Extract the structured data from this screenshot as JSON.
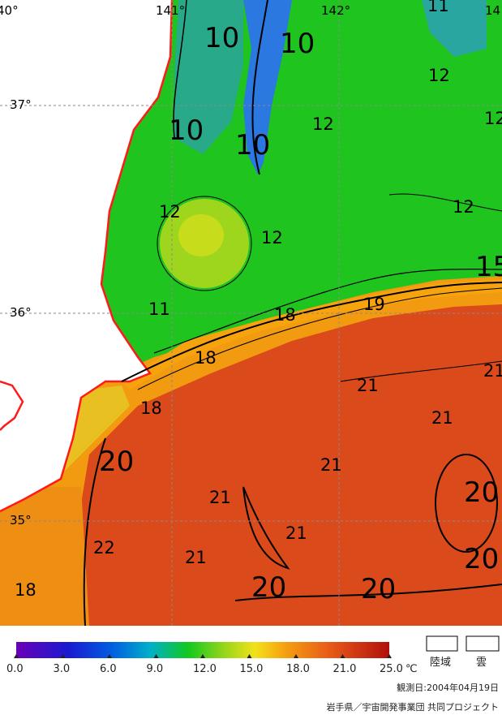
{
  "map": {
    "longitude_labels": [
      "40°",
      "141°",
      "142°",
      "14"
    ],
    "latitude_labels": [
      "37°",
      "36°",
      "35°"
    ],
    "contour_labels": [
      {
        "text": "10",
        "big": true
      },
      {
        "text": "10",
        "big": true
      },
      {
        "text": "10",
        "big": true
      },
      {
        "text": "10",
        "big": true
      },
      {
        "text": "11",
        "big": false
      },
      {
        "text": "12",
        "big": false
      },
      {
        "text": "12",
        "big": false
      },
      {
        "text": "12",
        "big": false
      },
      {
        "text": "12",
        "big": false
      },
      {
        "text": "12",
        "big": false
      },
      {
        "text": "12",
        "big": false
      },
      {
        "text": "15",
        "big": true
      },
      {
        "text": "11",
        "big": false
      },
      {
        "text": "18",
        "big": false
      },
      {
        "text": "19",
        "big": false
      },
      {
        "text": "18",
        "big": false
      },
      {
        "text": "18",
        "big": false
      },
      {
        "text": "21",
        "big": false
      },
      {
        "text": "21",
        "big": false
      },
      {
        "text": "21",
        "big": false
      },
      {
        "text": "21",
        "big": false
      },
      {
        "text": "20",
        "big": true
      },
      {
        "text": "21",
        "big": false
      },
      {
        "text": "20",
        "big": true
      },
      {
        "text": "21",
        "big": false
      },
      {
        "text": "20",
        "big": true
      },
      {
        "text": "22",
        "big": false
      },
      {
        "text": "21",
        "big": false
      },
      {
        "text": "20",
        "big": true
      },
      {
        "text": "20",
        "big": true
      },
      {
        "text": "18",
        "big": false
      }
    ]
  },
  "legend": {
    "ticks": [
      "0.0",
      "3.0",
      "6.0",
      "9.0",
      "12.0",
      "15.0",
      "18.0",
      "21.0",
      "25.0"
    ],
    "unit": "℃",
    "land_label": "陸域",
    "cloud_label": "雲",
    "observation_date": "観測日:2004年04月19日",
    "credit": "岩手県／宇宙開発事業団 共同プロジェクト",
    "colors": {
      "land": "#ffffff",
      "coastline": "#ff1a1a",
      "cold_water": "#1f6fd6",
      "mid_water": "#22cc22",
      "warm_water": "#f29a10",
      "hot_water": "#d8401a"
    }
  }
}
